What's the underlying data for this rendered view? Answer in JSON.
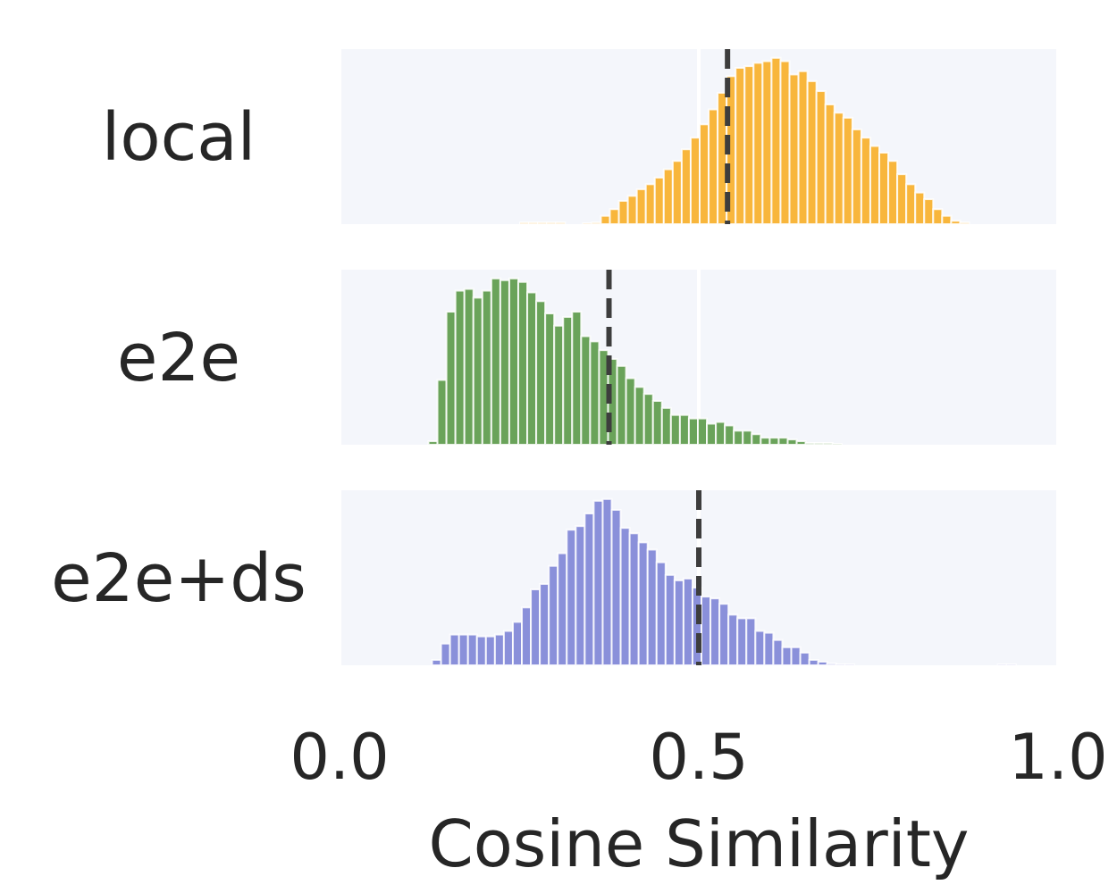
{
  "chart_data": {
    "type": "bar",
    "title": "",
    "xlabel": "Cosine Similarity",
    "ylabel": "",
    "xlim": [
      0.0,
      1.0
    ],
    "xticks": [
      "0.0",
      "0.5",
      "1.0"
    ],
    "grid": true,
    "bin_width": 0.0125,
    "series": [
      {
        "name": "local",
        "color": "#F8B63C",
        "mean": 0.54,
        "x": [
          0.12,
          0.1325,
          0.145,
          0.1575,
          0.17,
          0.1825,
          0.195,
          0.2075,
          0.22,
          0.2325,
          0.245,
          0.2575,
          0.27,
          0.2825,
          0.295,
          0.3075,
          0.32,
          0.3325,
          0.345,
          0.3575,
          0.37,
          0.3825,
          0.395,
          0.4075,
          0.42,
          0.4325,
          0.445,
          0.4575,
          0.47,
          0.4825,
          0.495,
          0.5075,
          0.52,
          0.5325,
          0.545,
          0.5575,
          0.57,
          0.5825,
          0.595,
          0.6075,
          0.62,
          0.6325,
          0.645,
          0.6575,
          0.67,
          0.6825,
          0.695,
          0.7075,
          0.72,
          0.7325,
          0.745,
          0.7575,
          0.77,
          0.7825,
          0.795,
          0.8075,
          0.82,
          0.8325,
          0.845,
          0.8575,
          0.87,
          0.8825,
          0.895,
          0.9075,
          0.92
        ],
        "values": [
          0,
          0,
          0,
          0,
          0,
          0,
          0,
          0,
          0,
          0,
          0,
          0.01,
          0.01,
          0.01,
          0.01,
          0.01,
          0,
          0,
          0.005,
          0.01,
          0.05,
          0.09,
          0.14,
          0.17,
          0.21,
          0.24,
          0.28,
          0.33,
          0.38,
          0.45,
          0.52,
          0.6,
          0.69,
          0.79,
          0.89,
          0.94,
          0.95,
          0.97,
          0.98,
          1.0,
          0.98,
          0.9,
          0.92,
          0.86,
          0.8,
          0.72,
          0.67,
          0.64,
          0.57,
          0.52,
          0.47,
          0.43,
          0.38,
          0.3,
          0.24,
          0.19,
          0.15,
          0.09,
          0.05,
          0.02,
          0.01,
          0,
          0,
          0,
          0
        ]
      },
      {
        "name": "e2e",
        "color": "#6AA35A",
        "mean": 0.375,
        "x": [
          0.13,
          0.1425,
          0.155,
          0.1675,
          0.18,
          0.1925,
          0.205,
          0.2175,
          0.23,
          0.2425,
          0.255,
          0.2675,
          0.28,
          0.2925,
          0.305,
          0.3175,
          0.33,
          0.3425,
          0.355,
          0.3675,
          0.38,
          0.3925,
          0.405,
          0.4175,
          0.43,
          0.4425,
          0.455,
          0.4675,
          0.48,
          0.4925,
          0.505,
          0.5175,
          0.53,
          0.5425,
          0.555,
          0.5675,
          0.58,
          0.5925,
          0.605,
          0.6175,
          0.63,
          0.6425,
          0.655,
          0.6675,
          0.68,
          0.6925,
          0.705,
          0.7175,
          0.73,
          0.7425,
          0.755,
          0.7675,
          0.78,
          0.7925,
          0.805,
          0.8175,
          0.83,
          0.8425,
          0.855,
          0.8675,
          0.88
        ],
        "values": [
          0.02,
          0.37,
          0.76,
          0.88,
          0.89,
          0.84,
          0.88,
          0.95,
          0.94,
          0.95,
          0.93,
          0.87,
          0.82,
          0.75,
          0.68,
          0.73,
          0.76,
          0.62,
          0.59,
          0.54,
          0.49,
          0.45,
          0.38,
          0.33,
          0.29,
          0.25,
          0.21,
          0.17,
          0.17,
          0.15,
          0.15,
          0.12,
          0.13,
          0.11,
          0.08,
          0.08,
          0.06,
          0.04,
          0.04,
          0.04,
          0.03,
          0.02,
          0.01,
          0.01,
          0.01,
          0.005,
          0,
          0,
          0,
          0,
          0,
          0,
          0,
          0,
          0,
          0,
          0,
          0,
          0,
          0,
          0
        ]
      },
      {
        "name": "e2e+ds",
        "color": "#8A90DA",
        "mean": 0.5,
        "x": [
          0.135,
          0.1475,
          0.16,
          0.1725,
          0.185,
          0.1975,
          0.21,
          0.2225,
          0.235,
          0.2475,
          0.26,
          0.2725,
          0.285,
          0.2975,
          0.31,
          0.3225,
          0.335,
          0.3475,
          0.36,
          0.3725,
          0.385,
          0.3975,
          0.41,
          0.4225,
          0.435,
          0.4475,
          0.46,
          0.4725,
          0.485,
          0.4975,
          0.51,
          0.5225,
          0.535,
          0.5475,
          0.56,
          0.5725,
          0.585,
          0.5975,
          0.61,
          0.6225,
          0.635,
          0.6475,
          0.66,
          0.6725,
          0.685,
          0.6975,
          0.71,
          0.7225,
          0.735,
          0.7475,
          0.76,
          0.7725,
          0.785,
          0.7975,
          0.81,
          0.8225,
          0.835,
          0.8475,
          0.86,
          0.8725,
          0.885,
          0.8975,
          0.91,
          0.9225,
          0.935,
          0.9475,
          0.96,
          0.9725,
          0.985,
          0.9975
        ],
        "values": [
          0.03,
          0.12,
          0.17,
          0.17,
          0.17,
          0.16,
          0.16,
          0.17,
          0.19,
          0.24,
          0.32,
          0.42,
          0.45,
          0.55,
          0.62,
          0.75,
          0.77,
          0.84,
          0.91,
          0.92,
          0.86,
          0.76,
          0.73,
          0.68,
          0.64,
          0.57,
          0.5,
          0.47,
          0.48,
          0.43,
          0.38,
          0.37,
          0.34,
          0.28,
          0.26,
          0.26,
          0.19,
          0.18,
          0.14,
          0.1,
          0.1,
          0.07,
          0.03,
          0.02,
          0.01,
          0.005,
          0.005,
          0,
          0,
          0,
          0,
          0,
          0,
          0,
          0,
          0,
          0,
          0,
          0,
          0,
          0,
          0,
          0,
          0.005,
          0.005,
          0,
          0,
          0,
          0,
          0
        ]
      }
    ]
  }
}
